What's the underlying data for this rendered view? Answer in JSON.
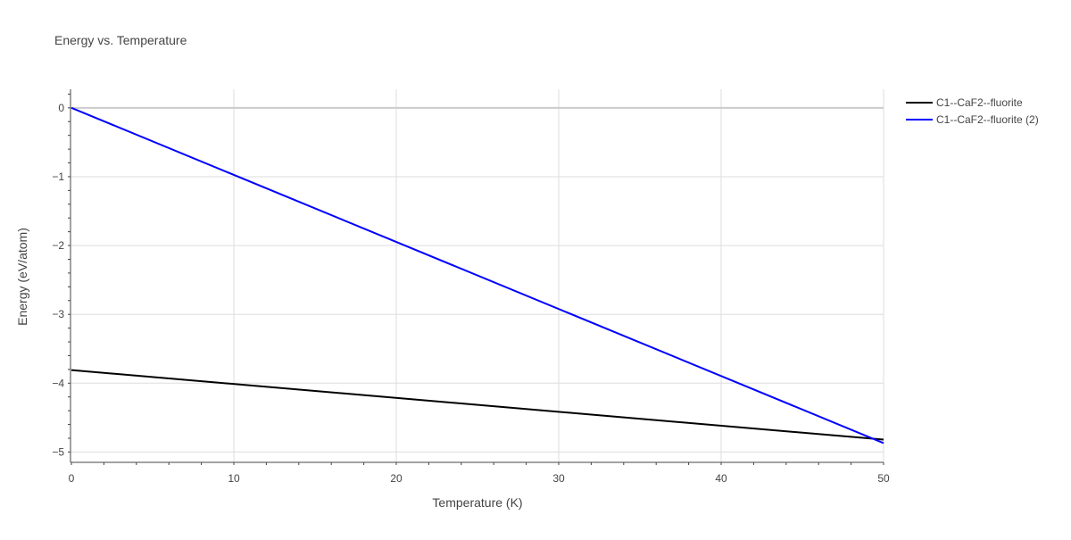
{
  "chart_data": {
    "type": "line",
    "title": "Energy vs. Temperature",
    "xlabel": "Temperature (K)",
    "ylabel": "Energy (eV/atom)",
    "xlim": [
      0,
      50
    ],
    "ylim": [
      -5.15,
      0.27
    ],
    "x_ticks": [
      0,
      10,
      20,
      30,
      40,
      50
    ],
    "y_ticks": [
      0,
      -1,
      -2,
      -3,
      -4,
      -5
    ],
    "x_tick_labels": [
      "0",
      "10",
      "20",
      "30",
      "40",
      "50"
    ],
    "y_tick_labels": [
      "0",
      "−1",
      "−2",
      "−3",
      "−4",
      "−5"
    ],
    "grid": true,
    "legend_position": "top-right",
    "series": [
      {
        "name": "C1--CaF2--fluorite",
        "color": "#000000",
        "x": [
          0,
          50
        ],
        "y": [
          -3.81,
          -4.82
        ]
      },
      {
        "name": "C1--CaF2--fluorite (2)",
        "color": "#0000ff",
        "x": [
          0,
          50
        ],
        "y": [
          0,
          -4.87
        ]
      }
    ]
  }
}
